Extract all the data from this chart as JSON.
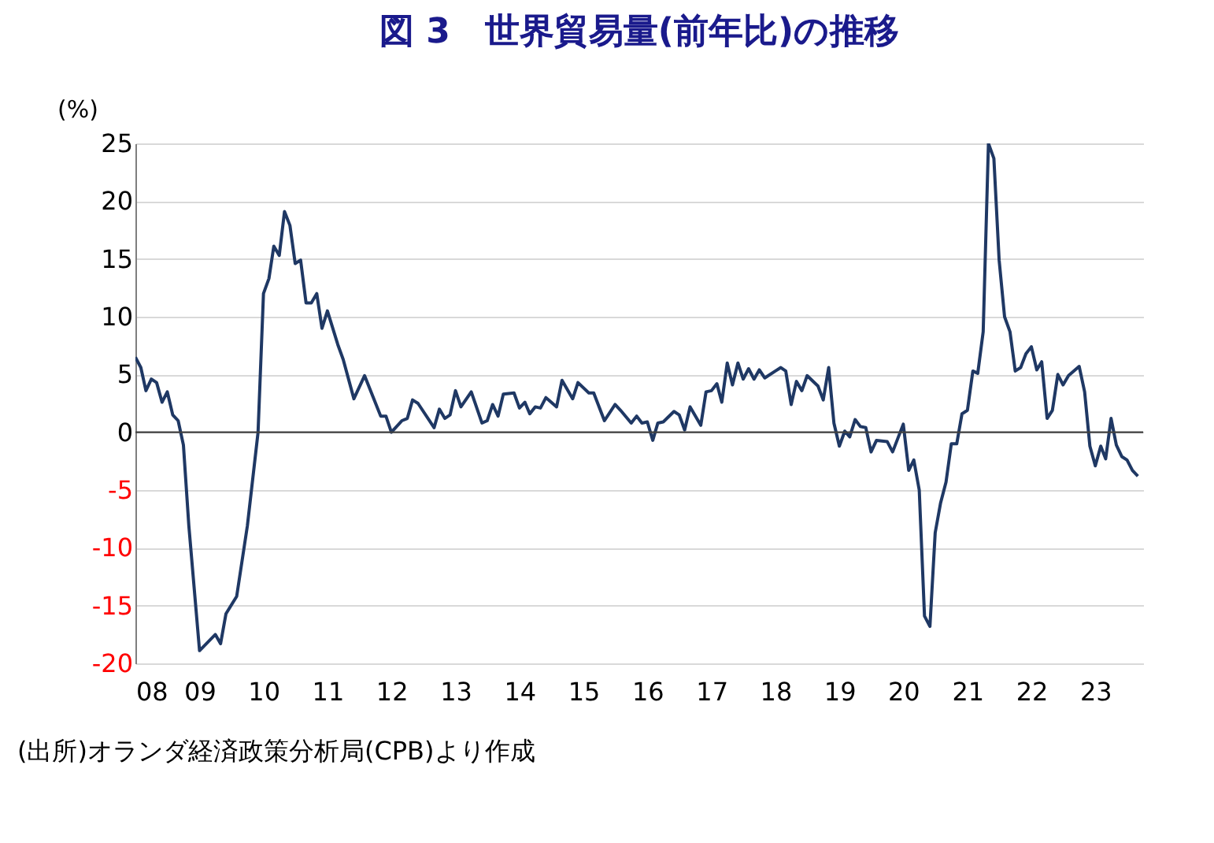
{
  "chart_data": {
    "type": "line",
    "title": "図 3　世界貿易量(前年比)の推移",
    "ylabel": "(%)",
    "annotations": [
      "(出所)オランダ経済政策分析局(CPB)より作成"
    ],
    "x": [
      "2008-01",
      "2008-02",
      "2008-03",
      "2008-04",
      "2008-05",
      "2008-06",
      "2008-07",
      "2008-08",
      "2008-09",
      "2008-10",
      "2008-11",
      "2009-01",
      "2009-04",
      "2009-05",
      "2009-06",
      "2009-08",
      "2009-10",
      "2009-12",
      "2010-01",
      "2010-02",
      "2010-03",
      "2010-04",
      "2010-05",
      "2010-06",
      "2010-07",
      "2010-08",
      "2010-09",
      "2010-10",
      "2010-11",
      "2010-12",
      "2011-01",
      "2011-03",
      "2011-04",
      "2011-06",
      "2011-08",
      "2011-11",
      "2011-12",
      "2012-01",
      "2012-03",
      "2012-04",
      "2012-05",
      "2012-06",
      "2012-09",
      "2012-10",
      "2012-11",
      "2012-12",
      "2013-01",
      "2013-02",
      "2013-04",
      "2013-06",
      "2013-07",
      "2013-08",
      "2013-09",
      "2013-10",
      "2013-12",
      "2014-01",
      "2014-02",
      "2014-03",
      "2014-04",
      "2014-05",
      "2014-06",
      "2014-08",
      "2014-09",
      "2014-11",
      "2014-12",
      "2015-02",
      "2015-03",
      "2015-05",
      "2015-07",
      "2015-08",
      "2015-10",
      "2015-11",
      "2015-12",
      "2016-01",
      "2016-02",
      "2016-03",
      "2016-04",
      "2016-06",
      "2016-07",
      "2016-08",
      "2016-09",
      "2016-11",
      "2016-12",
      "2017-01",
      "2017-02",
      "2017-03",
      "2017-04",
      "2017-05",
      "2017-06",
      "2017-07",
      "2017-08",
      "2017-09",
      "2017-10",
      "2017-11",
      "2018-01",
      "2018-02",
      "2018-03",
      "2018-04",
      "2018-05",
      "2018-06",
      "2018-07",
      "2018-09",
      "2018-10",
      "2018-11",
      "2018-12",
      "2019-01",
      "2019-02",
      "2019-03",
      "2019-04",
      "2019-05",
      "2019-06",
      "2019-07",
      "2019-08",
      "2019-10",
      "2019-11",
      "2020-01",
      "2020-02",
      "2020-03",
      "2020-04",
      "2020-05",
      "2020-06",
      "2020-07",
      "2020-08",
      "2020-09",
      "2020-10",
      "2020-11",
      "2020-12",
      "2021-01",
      "2021-02",
      "2021-03",
      "2021-04",
      "2021-05",
      "2021-06",
      "2021-07",
      "2021-08",
      "2021-09",
      "2021-10",
      "2021-11",
      "2021-12",
      "2022-01",
      "2022-02",
      "2022-03",
      "2022-04",
      "2022-05",
      "2022-06",
      "2022-07",
      "2022-08",
      "2022-10",
      "2022-11",
      "2022-12",
      "2023-01",
      "2023-02",
      "2023-03",
      "2023-04",
      "2023-05",
      "2023-06",
      "2023-07",
      "2023-08",
      "2023-09"
    ],
    "series": [
      {
        "color": "#1f3864",
        "values": [
          6.5,
          5.6,
          3.6,
          4.6,
          4.3,
          2.6,
          3.5,
          1.5,
          1.0,
          -1.1,
          -8.1,
          -18.9,
          -17.5,
          -18.3,
          -15.7,
          -14.2,
          -8.1,
          0.0,
          12.0,
          13.3,
          16.1,
          15.3,
          19.1,
          17.9,
          14.6,
          14.9,
          11.2,
          11.2,
          12.0,
          9.0,
          10.5,
          7.6,
          6.3,
          2.9,
          4.9,
          1.4,
          1.4,
          0.0,
          1.0,
          1.2,
          2.8,
          2.5,
          0.4,
          2.0,
          1.2,
          1.5,
          3.6,
          2.2,
          3.5,
          0.8,
          1.0,
          2.4,
          1.4,
          3.3,
          3.4,
          2.1,
          2.6,
          1.6,
          2.2,
          2.1,
          3.0,
          2.2,
          4.5,
          2.9,
          4.3,
          3.4,
          3.4,
          1.0,
          2.4,
          1.9,
          0.8,
          1.4,
          0.8,
          0.9,
          -0.7,
          0.8,
          0.9,
          1.8,
          1.5,
          0.2,
          2.2,
          0.6,
          3.5,
          3.6,
          4.2,
          2.6,
          6.0,
          4.1,
          6.0,
          4.6,
          5.5,
          4.6,
          5.4,
          4.7,
          5.3,
          5.6,
          5.3,
          2.4,
          4.4,
          3.6,
          4.9,
          4.0,
          2.8,
          5.6,
          0.8,
          -1.2,
          0.1,
          -0.4,
          1.1,
          0.5,
          0.4,
          -1.7,
          -0.7,
          -0.8,
          -1.7,
          0.7,
          -3.3,
          -2.4,
          -5.0,
          -15.9,
          -16.8,
          -8.7,
          -6.1,
          -4.3,
          -1.0,
          -1.0,
          1.6,
          1.9,
          5.3,
          5.1,
          8.7,
          25.0,
          23.7,
          14.9,
          10.0,
          8.7,
          5.3,
          5.6,
          6.8,
          7.4,
          5.4,
          6.1,
          1.2,
          1.9,
          5.0,
          4.1,
          4.9,
          5.7,
          3.5,
          -1.2,
          -2.9,
          -1.2,
          -2.3,
          1.2,
          -1.1,
          -2.1,
          -2.4,
          -3.3,
          -3.8
        ]
      }
    ],
    "xlim": [
      "2008-01",
      "2023-10"
    ],
    "xticks": [
      {
        "value": "2008-01",
        "label": "08"
      },
      {
        "value": "2009-01",
        "label": "09"
      },
      {
        "value": "2010-01",
        "label": "10"
      },
      {
        "value": "2011-01",
        "label": "11"
      },
      {
        "value": "2012-01",
        "label": "12"
      },
      {
        "value": "2013-01",
        "label": "13"
      },
      {
        "value": "2014-01",
        "label": "14"
      },
      {
        "value": "2015-01",
        "label": "15"
      },
      {
        "value": "2016-01",
        "label": "16"
      },
      {
        "value": "2017-01",
        "label": "17"
      },
      {
        "value": "2018-01",
        "label": "18"
      },
      {
        "value": "2019-01",
        "label": "19"
      },
      {
        "value": "2020-01",
        "label": "20"
      },
      {
        "value": "2021-01",
        "label": "21"
      },
      {
        "value": "2022-01",
        "label": "22"
      },
      {
        "value": "2023-01",
        "label": "23"
      }
    ],
    "ylim": [
      -20,
      25
    ],
    "yticks": [
      -20,
      -15,
      -10,
      -5,
      0,
      5,
      10,
      15,
      20,
      25
    ],
    "ref_lines": [
      {
        "axis": "y",
        "value": 0,
        "color": "#404040"
      }
    ],
    "grid": "y",
    "line_style": "solid",
    "marker": "none",
    "legend": false
  }
}
